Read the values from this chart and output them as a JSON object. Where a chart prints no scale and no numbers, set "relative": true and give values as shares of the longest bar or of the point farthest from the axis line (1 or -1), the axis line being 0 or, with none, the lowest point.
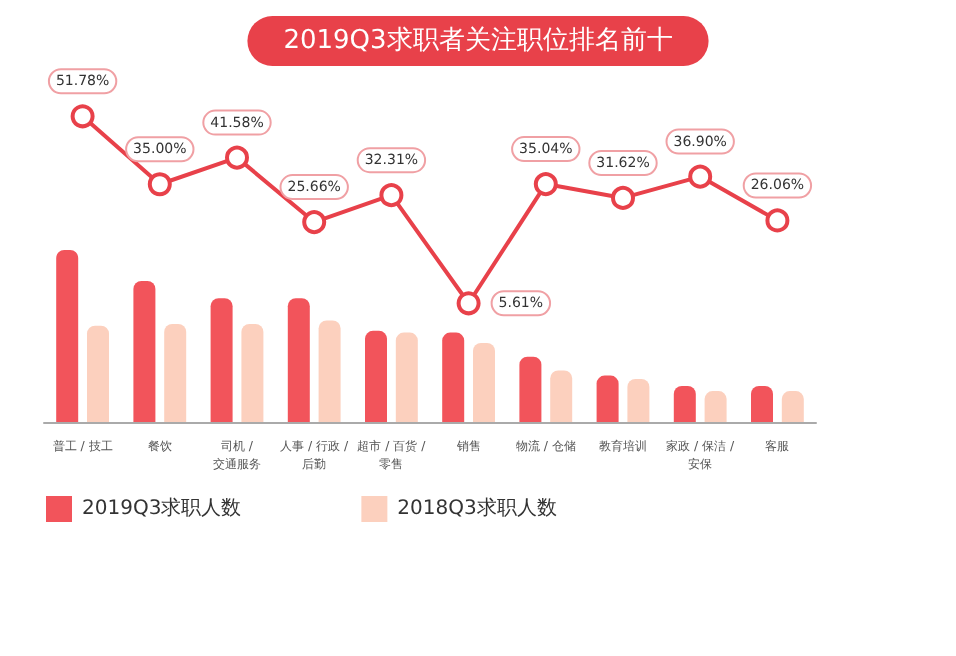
{
  "chart_data": [
    {
      "type": "bar",
      "title": "2019Q3求职者关注职位排名前十",
      "categories": [
        "普工 / 技工",
        "餐饮",
        "司机 / 交通服务",
        "人事 / 行政 / 后勤",
        "超市 / 百货 / 零售",
        "销售",
        "物流 / 仓储",
        "教育培训",
        "家政 / 保洁 / 安保",
        "客服"
      ],
      "relative": true,
      "series": [
        {
          "name": "2019Q3求职人数",
          "color": "#f2545b",
          "values": [
            1,
            0.82,
            0.72,
            0.72,
            0.53,
            0.52,
            0.38,
            0.27,
            0.21,
            0.21
          ]
        },
        {
          "name": "2018Q3求职人数",
          "color": "#fcd0be",
          "values": [
            0.56,
            0.57,
            0.57,
            0.59,
            0.52,
            0.46,
            0.3,
            0.25,
            0.18,
            0.18
          ]
        }
      ],
      "legend": "bottom left"
    },
    {
      "type": "line",
      "categories": [
        null,
        null,
        null,
        null,
        null,
        null,
        null,
        null,
        null,
        null
      ],
      "tick_labels": false,
      "series": [
        {
          "color": "#e8414a",
          "values": [
            51.78,
            35.0,
            41.58,
            25.66,
            32.31,
            5.61,
            35.04,
            31.62,
            36.9,
            26.06
          ],
          "value_labels": [
            "51.78%",
            "35.00%",
            "41.58%",
            "25.66%",
            "32.31%",
            "5.61%",
            "35.04%",
            "31.62%",
            "36.90%",
            "26.06%"
          ]
        }
      ],
      "marker": "circle"
    }
  ]
}
